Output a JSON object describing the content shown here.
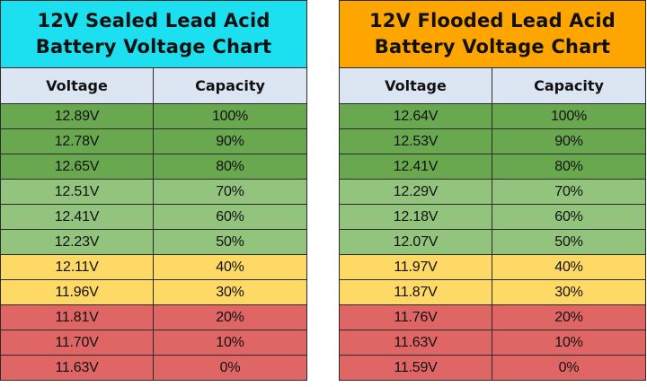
{
  "colors": {
    "sealed_title_bg": "#1ce0f0",
    "flooded_title_bg": "#ffa500",
    "header_bg": "#dce6f3",
    "dark_green": "#6aa84f",
    "light_green": "#93c47d",
    "yellow": "#ffd966",
    "red": "#e06666",
    "border": "#2b2b2b"
  },
  "chart_data": [
    {
      "type": "table",
      "title": "12V Sealed Lead Acid Battery Voltage Chart",
      "title_lines": [
        "12V Sealed Lead Acid",
        "Battery Voltage Chart"
      ],
      "columns": [
        "Voltage",
        "Capacity"
      ],
      "rows": [
        {
          "voltage": "12.89V",
          "capacity": "100%",
          "band": "dark_green"
        },
        {
          "voltage": "12.78V",
          "capacity": "90%",
          "band": "dark_green"
        },
        {
          "voltage": "12.65V",
          "capacity": "80%",
          "band": "dark_green"
        },
        {
          "voltage": "12.51V",
          "capacity": "70%",
          "band": "light_green"
        },
        {
          "voltage": "12.41V",
          "capacity": "60%",
          "band": "light_green"
        },
        {
          "voltage": "12.23V",
          "capacity": "50%",
          "band": "light_green"
        },
        {
          "voltage": "12.11V",
          "capacity": "40%",
          "band": "yellow"
        },
        {
          "voltage": "11.96V",
          "capacity": "30%",
          "band": "yellow"
        },
        {
          "voltage": "11.81V",
          "capacity": "20%",
          "band": "red"
        },
        {
          "voltage": "11.70V",
          "capacity": "10%",
          "band": "red"
        },
        {
          "voltage": "11.63V",
          "capacity": "0%",
          "band": "red"
        }
      ]
    },
    {
      "type": "table",
      "title": "12V Flooded Lead Acid Battery Voltage Chart",
      "title_lines": [
        "12V Flooded Lead Acid",
        "Battery Voltage Chart"
      ],
      "columns": [
        "Voltage",
        "Capacity"
      ],
      "rows": [
        {
          "voltage": "12.64V",
          "capacity": "100%",
          "band": "dark_green"
        },
        {
          "voltage": "12.53V",
          "capacity": "90%",
          "band": "dark_green"
        },
        {
          "voltage": "12.41V",
          "capacity": "80%",
          "band": "dark_green"
        },
        {
          "voltage": "12.29V",
          "capacity": "70%",
          "band": "light_green"
        },
        {
          "voltage": "12.18V",
          "capacity": "60%",
          "band": "light_green"
        },
        {
          "voltage": "12.07V",
          "capacity": "50%",
          "band": "light_green"
        },
        {
          "voltage": "11.97V",
          "capacity": "40%",
          "band": "yellow"
        },
        {
          "voltage": "11.87V",
          "capacity": "30%",
          "band": "yellow"
        },
        {
          "voltage": "11.76V",
          "capacity": "20%",
          "band": "red"
        },
        {
          "voltage": "11.63V",
          "capacity": "10%",
          "band": "red"
        },
        {
          "voltage": "11.59V",
          "capacity": "0%",
          "band": "red"
        }
      ]
    }
  ]
}
